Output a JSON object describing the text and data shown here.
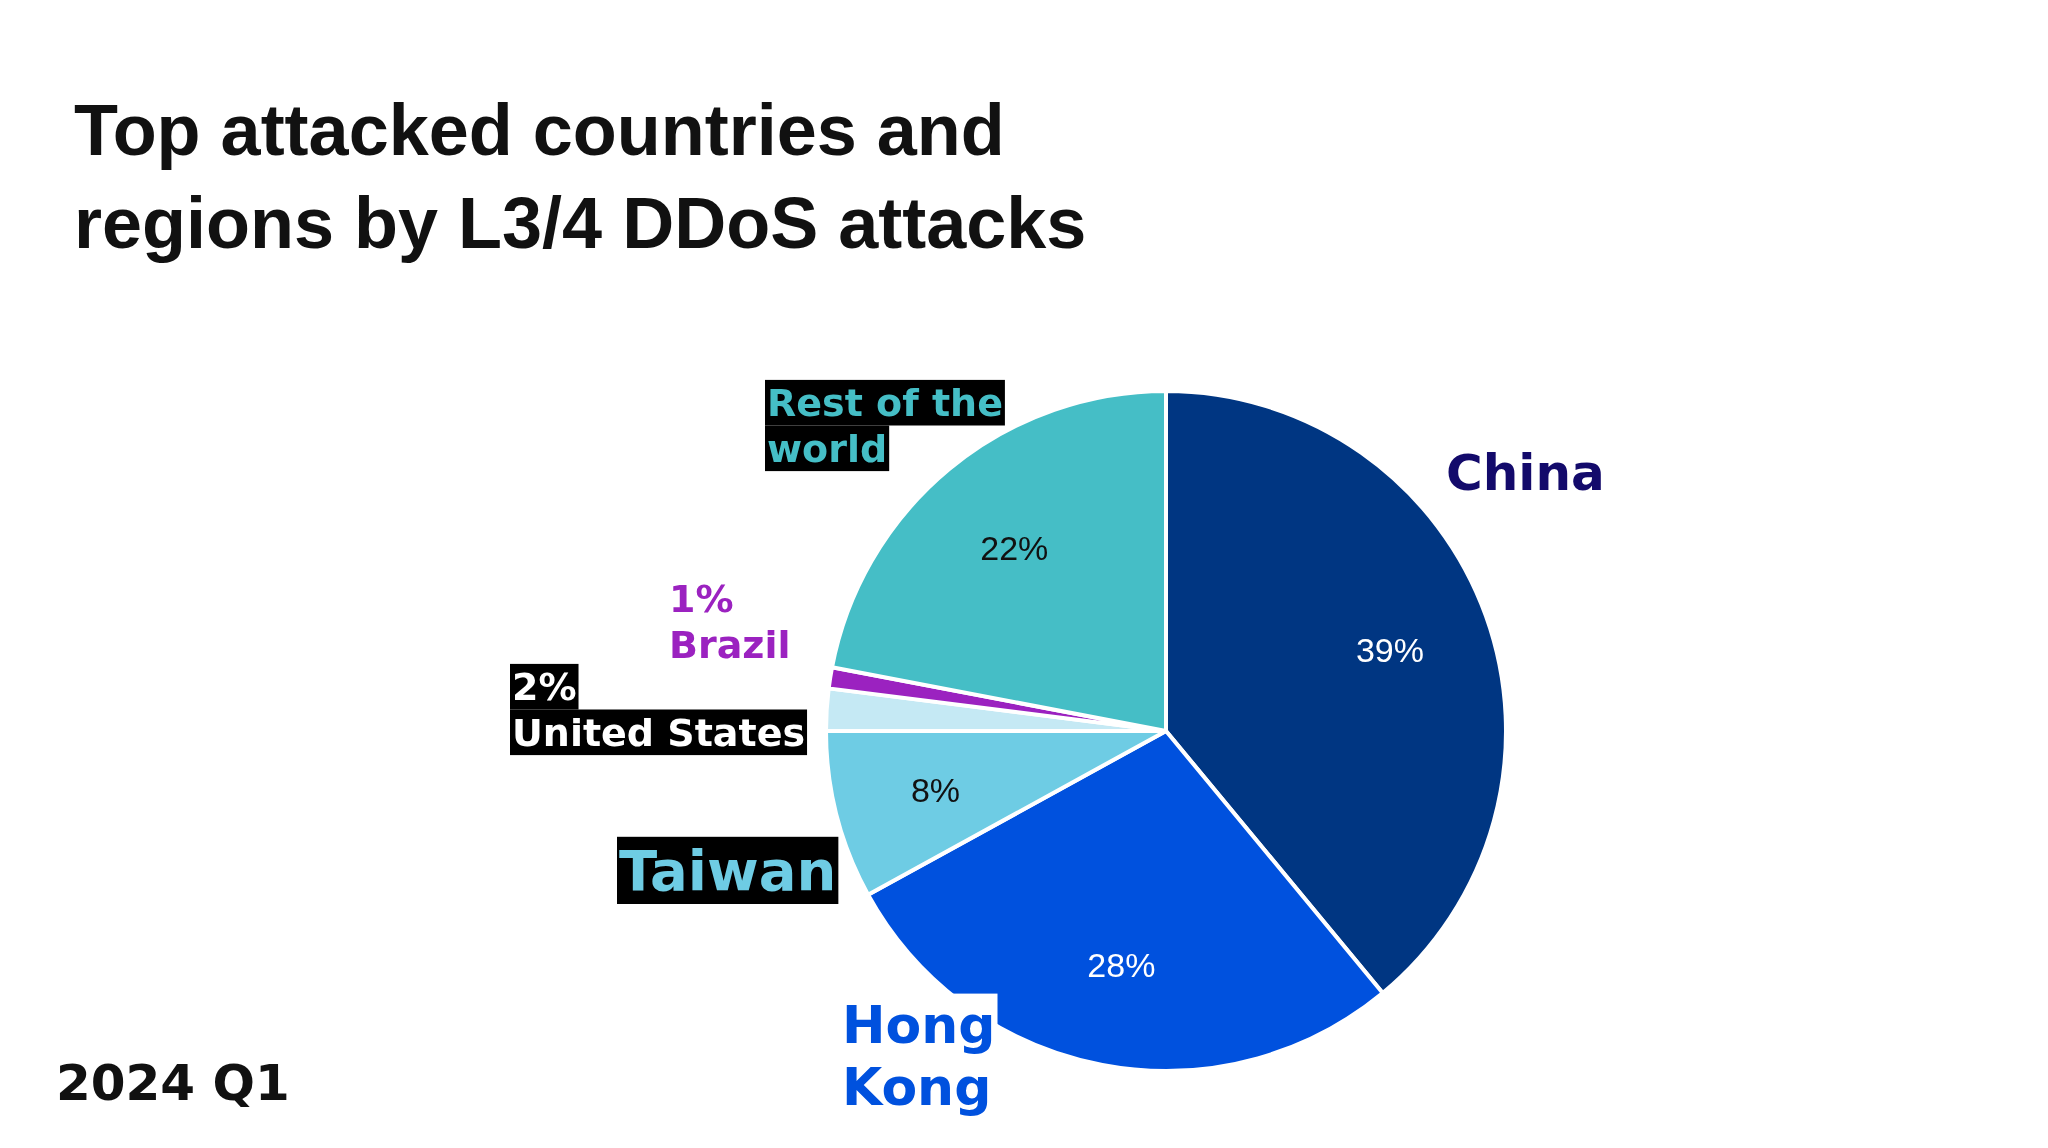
{
  "chart_data": {
    "type": "pie",
    "title": "Top attacked countries and regions by L3/4 DDoS attacks",
    "categories": [
      "China",
      "Hong Kong",
      "Taiwan",
      "United States",
      "Brazil",
      "Rest of the world"
    ],
    "values": [
      39,
      28,
      8,
      2,
      1,
      22
    ],
    "value_labels": [
      "39%",
      "28%",
      "8%",
      "2%",
      "1%",
      "22%"
    ],
    "colors": [
      "#003682",
      "#0051de",
      "#6ecce4",
      "#c5e9f4",
      "#9b22c0",
      "#45bec6"
    ],
    "annotations": [
      "2024 Q1"
    ]
  }
}
